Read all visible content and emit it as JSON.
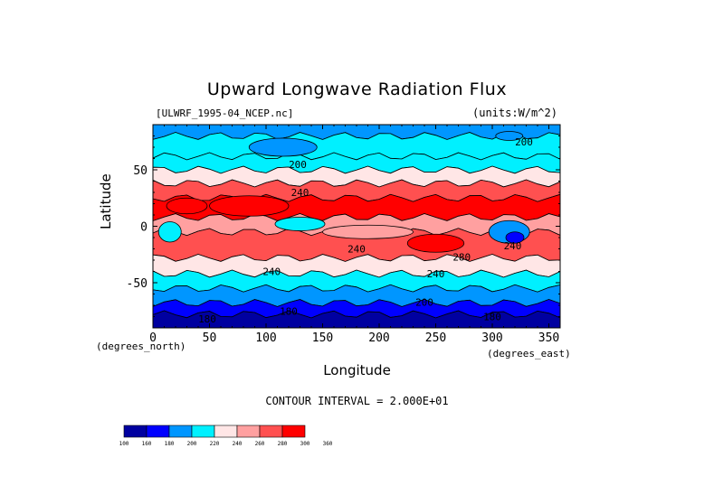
{
  "chart_data": {
    "type": "contour",
    "title": "Upward Longwave Radiation Flux",
    "source_label": "[ULWRF_1995-04_NCEP.nc]",
    "units_label": "(units:W/m^2)",
    "xlabel": "Longitude",
    "ylabel": "Latitude",
    "x_unit_label": "(degrees_north)",
    "y_unit_label": "(degrees_east)",
    "xlim": [
      0,
      360
    ],
    "ylim": [
      -90,
      90
    ],
    "x_ticks": [
      0,
      50,
      100,
      150,
      200,
      250,
      300,
      350
    ],
    "y_ticks": [
      -50,
      0,
      50
    ],
    "contour_interval_text": "CONTOUR INTERVAL = 2.000E+01",
    "levels": [
      "100",
      "160",
      "180",
      "200",
      "220",
      "240",
      "260",
      "280",
      "300",
      "360"
    ],
    "colors": [
      "#0000a0",
      "#0000ff",
      "#0096ff",
      "#00f0ff",
      "#ffe6e6",
      "#ffa0a0",
      "#ff5050",
      "#ff0000"
    ],
    "zonal_bands": [
      {
        "lat_top": 90,
        "lat_bottom": 80,
        "value": 180
      },
      {
        "lat_top": 80,
        "lat_bottom": 62,
        "value": 200
      },
      {
        "lat_top": 62,
        "lat_bottom": 50,
        "value": 215
      },
      {
        "lat_top": 50,
        "lat_bottom": 38,
        "value": 230
      },
      {
        "lat_top": 38,
        "lat_bottom": 25,
        "value": 275
      },
      {
        "lat_top": 25,
        "lat_bottom": 8,
        "value": 285
      },
      {
        "lat_top": 8,
        "lat_bottom": -5,
        "value": 250
      },
      {
        "lat_top": -5,
        "lat_bottom": -28,
        "value": 270
      },
      {
        "lat_top": -28,
        "lat_bottom": -42,
        "value": 230
      },
      {
        "lat_top": -42,
        "lat_bottom": -55,
        "value": 210
      },
      {
        "lat_top": -55,
        "lat_bottom": -68,
        "value": 195
      },
      {
        "lat_top": -68,
        "lat_bottom": -78,
        "value": 170
      },
      {
        "lat_top": -78,
        "lat_bottom": -90,
        "value": 150
      }
    ],
    "features": [
      {
        "lon": 85,
        "lat": 18,
        "rx": 35,
        "ry": 9,
        "value": 310
      },
      {
        "lon": 30,
        "lat": 18,
        "rx": 18,
        "ry": 7,
        "value": 300
      },
      {
        "lon": 15,
        "lat": -5,
        "rx": 10,
        "ry": 9,
        "value": 215
      },
      {
        "lon": 130,
        "lat": 2,
        "rx": 22,
        "ry": 6,
        "value": 215
      },
      {
        "lon": 315,
        "lat": -5,
        "rx": 18,
        "ry": 10,
        "value": 190
      },
      {
        "lon": 320,
        "lat": -10,
        "rx": 8,
        "ry": 5,
        "value": 175
      },
      {
        "lon": 250,
        "lat": -15,
        "rx": 25,
        "ry": 8,
        "value": 285
      },
      {
        "lon": 190,
        "lat": -5,
        "rx": 40,
        "ry": 6,
        "value": 245
      },
      {
        "lon": 115,
        "lat": 70,
        "rx": 30,
        "ry": 8,
        "value": 185
      },
      {
        "lon": 315,
        "lat": 80,
        "rx": 12,
        "ry": 4,
        "value": 180
      }
    ],
    "contour_labels": [
      {
        "text": "200",
        "lon": 128,
        "lat": 55
      },
      {
        "text": "200",
        "lon": 328,
        "lat": 75
      },
      {
        "text": "240",
        "lon": 130,
        "lat": 30
      },
      {
        "text": "240",
        "lon": 180,
        "lat": -20
      },
      {
        "text": "240",
        "lon": 105,
        "lat": -40
      },
      {
        "text": "240",
        "lon": 250,
        "lat": -42
      },
      {
        "text": "240",
        "lon": 318,
        "lat": -17
      },
      {
        "text": "280",
        "lon": 273,
        "lat": -27
      },
      {
        "text": "200",
        "lon": 240,
        "lat": -67
      },
      {
        "text": "180",
        "lon": 120,
        "lat": -75
      },
      {
        "text": "180",
        "lon": 300,
        "lat": -80
      },
      {
        "text": "180",
        "lon": 48,
        "lat": -82
      }
    ]
  }
}
